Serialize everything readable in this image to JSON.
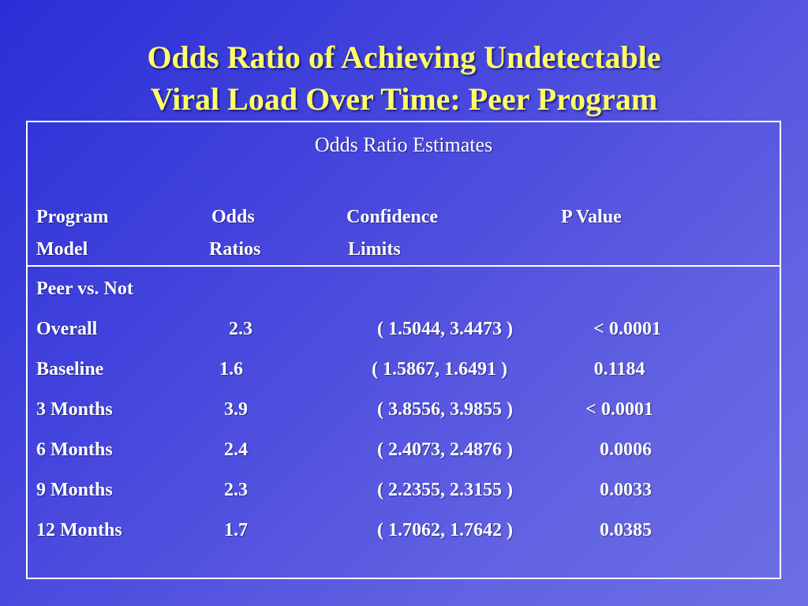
{
  "slide": {
    "title_line1": "Odds Ratio of Achieving Undetectable",
    "title_line2": "Viral Load Over Time: Peer Program"
  },
  "table": {
    "title": "Odds Ratio Estimates",
    "headers": {
      "program_line1": "Program",
      "program_line2": "Model",
      "odds_line1": "Odds",
      "odds_line2": "Ratios",
      "confidence_line1": "Confidence",
      "confidence_line2": "Limits",
      "pvalue_line1": "P Value"
    },
    "group_label": "Peer vs. Not",
    "rows": [
      {
        "label": "Overall",
        "odds": "2.3",
        "ci": "( 1.5044,  3.4473 )",
        "p": "< 0.0001"
      },
      {
        "label": "Baseline",
        "odds": "1.6",
        "ci": "( 1.5867,  1.6491 )",
        "p": "0.1184"
      },
      {
        "label": "3 Months",
        "odds": "3.9",
        "ci": "( 3.8556,  3.9855 )",
        "p": "< 0.0001"
      },
      {
        "label": "6 Months",
        "odds": "2.4",
        "ci": "( 2.4073,  2.4876 )",
        "p": "0.0006"
      },
      {
        "label": "9 Months",
        "odds": "2.3",
        "ci": "( 2.2355,  2.3155 )",
        "p": "0.0033"
      },
      {
        "label": "12 Months",
        "odds": "1.7",
        "ci": "( 1.7062,  1.7642 )",
        "p": "0.0385"
      }
    ]
  },
  "colors": {
    "title": "#ffff66",
    "text": "#ffffff",
    "background_start": "#2a2fd6",
    "background_end": "#6d6fe4"
  }
}
